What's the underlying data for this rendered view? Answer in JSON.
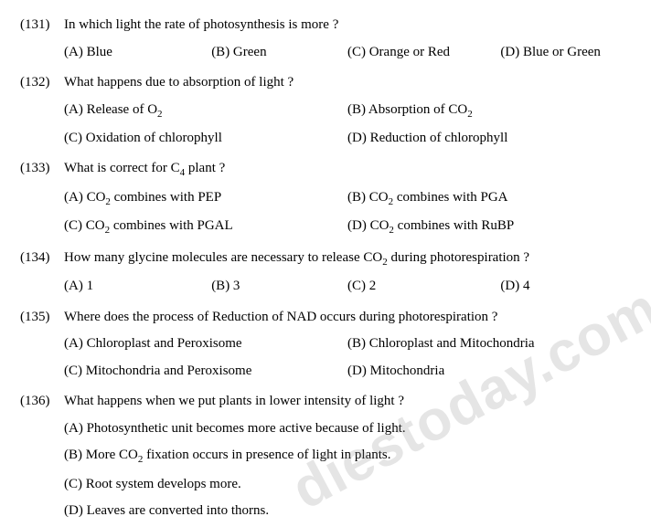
{
  "watermark": "diestoday.com",
  "questions": [
    {
      "num": "(131)",
      "text": "In which light the rate of photosynthesis is more ?",
      "layout": "4col",
      "opts": [
        "(A) Blue",
        "(B) Green",
        "(C) Orange or Red",
        "(D) Blue or Green"
      ]
    },
    {
      "num": "(132)",
      "text": "What happens due to absorption of light ?",
      "layout": "2col-2rows",
      "opts": [
        "(A) Release of O<sub>2</sub>",
        "(B) Absorption of CO<sub>2</sub>",
        "(C) Oxidation of chlorophyll",
        "(D) Reduction of chlorophyll"
      ]
    },
    {
      "num": "(133)",
      "text": "What is correct for C<sub>4</sub> plant ?",
      "layout": "2col-2rows",
      "opts": [
        "(A) CO<sub>2</sub> combines with PEP",
        "(B) CO<sub>2</sub> combines with PGA",
        "(C) CO<sub>2</sub> combines with PGAL",
        "(D) CO<sub>2</sub> combines with RuBP"
      ]
    },
    {
      "num": "(134)",
      "text": "How many glycine molecules are necessary to release CO<sub>2</sub> during photorespiration ?",
      "layout": "4col",
      "opts": [
        "(A) 1",
        "(B) 3",
        "(C) 2",
        "(D) 4"
      ]
    },
    {
      "num": "(135)",
      "text": "Where does the process of Reduction of NAD occurs during photorespiration ?",
      "layout": "2col-2rows",
      "opts": [
        "(A) Chloroplast and Peroxisome",
        "(B) Chloroplast and Mitochondria",
        "(C) Mitochondria and Peroxisome",
        "(D) Mitochondria"
      ]
    },
    {
      "num": "(136)",
      "text": "What happens when we put plants in lower intensity of light ?",
      "layout": "full",
      "opts": [
        "(A) Photosynthetic unit becomes more active because of light.",
        "(B) More CO<sub>2</sub> fixation occurs in presence of light in plants.",
        "(C) Root system develops more.",
        "(D) Leaves are converted into thorns."
      ]
    }
  ]
}
